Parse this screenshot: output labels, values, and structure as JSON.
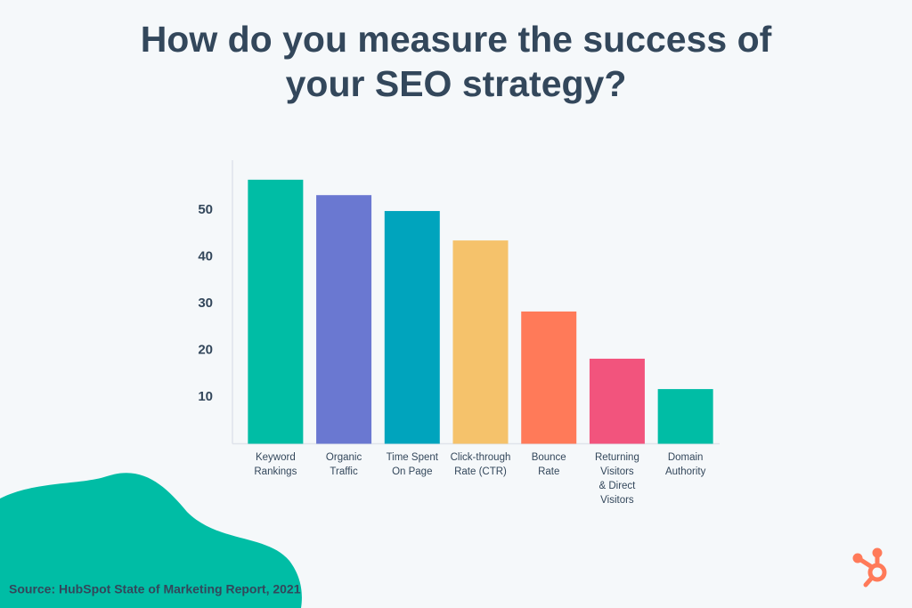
{
  "chart_data": {
    "type": "bar",
    "title": [
      "How do you measure the success of",
      "your SEO strategy?"
    ],
    "categories": [
      [
        "Keyword",
        "Rankings"
      ],
      [
        "Organic",
        "Traffic"
      ],
      [
        "Time Spent",
        "On Page"
      ],
      [
        "Click-through",
        "Rate (CTR)"
      ],
      [
        "Bounce",
        "Rate"
      ],
      [
        "Returning",
        "Visitors",
        "& Direct",
        "Visitors"
      ],
      [
        "Domain",
        "Authority"
      ]
    ],
    "values": [
      56.5,
      53.2,
      49.8,
      43.5,
      28.3,
      18.2,
      11.7
    ],
    "colors": [
      "#00bda5",
      "#6a78d1",
      "#00a4bd",
      "#f5c26b",
      "#ff7a59",
      "#f2547d",
      "#00bda5"
    ],
    "ylim": [
      0,
      60
    ],
    "yticks": [
      10,
      20,
      30,
      40,
      50
    ],
    "grid": false,
    "source": "Source: HubSpot State of Marketing Report, 2021"
  }
}
